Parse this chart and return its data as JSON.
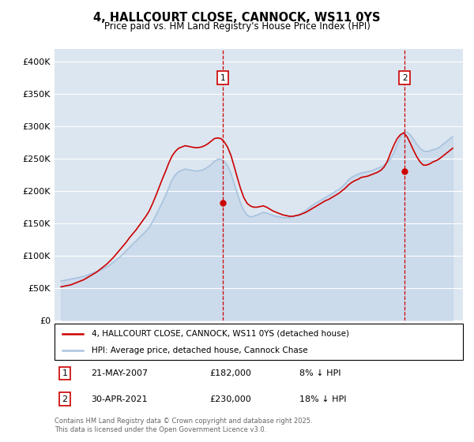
{
  "title": "4, HALLCOURT CLOSE, CANNOCK, WS11 0YS",
  "subtitle": "Price paid vs. HM Land Registry's House Price Index (HPI)",
  "ylim": [
    0,
    420000
  ],
  "yticks": [
    0,
    50000,
    100000,
    150000,
    200000,
    250000,
    300000,
    350000,
    400000
  ],
  "ytick_labels": [
    "£0",
    "£50K",
    "£100K",
    "£150K",
    "£200K",
    "£250K",
    "£300K",
    "£350K",
    "£400K"
  ],
  "xlim": [
    1994.5,
    2025.8
  ],
  "plot_bg_color": "#dce6f0",
  "grid_color": "#ffffff",
  "hpi_color": "#aac4e0",
  "price_color": "#cc0000",
  "ann1_x": 2007.38,
  "ann1_y": 182000,
  "ann2_x": 2021.33,
  "ann2_y": 230000,
  "legend_line1": "4, HALLCOURT CLOSE, CANNOCK, WS11 0YS (detached house)",
  "legend_line2": "HPI: Average price, detached house, Cannock Chase",
  "ann1_date": "21-MAY-2007",
  "ann1_price": "£182,000",
  "ann1_note": "8% ↓ HPI",
  "ann2_date": "30-APR-2021",
  "ann2_price": "£230,000",
  "ann2_note": "18% ↓ HPI",
  "footnote": "Contains HM Land Registry data © Crown copyright and database right 2025.\nThis data is licensed under the Open Government Licence v3.0.",
  "hpi_years": [
    1995,
    1995.25,
    1995.5,
    1995.75,
    1996,
    1996.25,
    1996.5,
    1996.75,
    1997,
    1997.25,
    1997.5,
    1997.75,
    1998,
    1998.25,
    1998.5,
    1998.75,
    1999,
    1999.25,
    1999.5,
    1999.75,
    2000,
    2000.25,
    2000.5,
    2000.75,
    2001,
    2001.25,
    2001.5,
    2001.75,
    2002,
    2002.25,
    2002.5,
    2002.75,
    2003,
    2003.25,
    2003.5,
    2003.75,
    2004,
    2004.25,
    2004.5,
    2004.75,
    2005,
    2005.25,
    2005.5,
    2005.75,
    2006,
    2006.25,
    2006.5,
    2006.75,
    2007,
    2007.25,
    2007.5,
    2007.75,
    2008,
    2008.25,
    2008.5,
    2008.75,
    2009,
    2009.25,
    2009.5,
    2009.75,
    2010,
    2010.25,
    2010.5,
    2010.75,
    2011,
    2011.25,
    2011.5,
    2011.75,
    2012,
    2012.25,
    2012.5,
    2012.75,
    2013,
    2013.25,
    2013.5,
    2013.75,
    2014,
    2014.25,
    2014.5,
    2014.75,
    2015,
    2015.25,
    2015.5,
    2015.75,
    2016,
    2016.25,
    2016.5,
    2016.75,
    2017,
    2017.25,
    2017.5,
    2017.75,
    2018,
    2018.25,
    2018.5,
    2018.75,
    2019,
    2019.25,
    2019.5,
    2019.75,
    2020,
    2020.25,
    2020.5,
    2020.75,
    2021,
    2021.25,
    2021.5,
    2021.75,
    2022,
    2022.25,
    2022.5,
    2022.75,
    2023,
    2023.25,
    2023.5,
    2023.75,
    2024,
    2024.25,
    2024.5,
    2024.75,
    2025
  ],
  "hpi_values": [
    61000,
    62000,
    63000,
    64000,
    65000,
    66000,
    67000,
    68000,
    70000,
    72000,
    74000,
    76000,
    78000,
    80000,
    83000,
    86000,
    90000,
    94000,
    98000,
    103000,
    108000,
    113000,
    118000,
    123000,
    128000,
    133000,
    138000,
    144000,
    152000,
    162000,
    172000,
    182000,
    193000,
    205000,
    217000,
    225000,
    230000,
    232000,
    234000,
    233000,
    232000,
    231000,
    231000,
    232000,
    234000,
    237000,
    241000,
    246000,
    249000,
    249000,
    246000,
    239000,
    228000,
    212000,
    196000,
    181000,
    170000,
    163000,
    160000,
    161000,
    163000,
    165000,
    167000,
    166000,
    164000,
    162000,
    161000,
    160000,
    159000,
    159000,
    159000,
    160000,
    162000,
    164000,
    167000,
    170000,
    174000,
    178000,
    181000,
    184000,
    187000,
    190000,
    193000,
    196000,
    199000,
    202000,
    206000,
    211000,
    217000,
    221000,
    224000,
    226000,
    228000,
    229000,
    230000,
    231000,
    233000,
    235000,
    237000,
    240000,
    244000,
    250000,
    260000,
    272000,
    283000,
    290000,
    291000,
    287000,
    280000,
    272000,
    266000,
    262000,
    261000,
    262000,
    264000,
    265000,
    268000,
    272000,
    276000,
    280000,
    284000
  ],
  "price_years": [
    1995,
    1995.25,
    1995.5,
    1995.75,
    1996,
    1996.25,
    1996.5,
    1996.75,
    1997,
    1997.25,
    1997.5,
    1997.75,
    1998,
    1998.25,
    1998.5,
    1998.75,
    1999,
    1999.25,
    1999.5,
    1999.75,
    2000,
    2000.25,
    2000.5,
    2000.75,
    2001,
    2001.25,
    2001.5,
    2001.75,
    2002,
    2002.25,
    2002.5,
    2002.75,
    2003,
    2003.25,
    2003.5,
    2003.75,
    2004,
    2004.25,
    2004.5,
    2004.75,
    2005,
    2005.25,
    2005.5,
    2005.75,
    2006,
    2006.25,
    2006.5,
    2006.75,
    2007,
    2007.25,
    2007.5,
    2007.75,
    2008,
    2008.25,
    2008.5,
    2008.75,
    2009,
    2009.25,
    2009.5,
    2009.75,
    2010,
    2010.25,
    2010.5,
    2010.75,
    2011,
    2011.25,
    2011.5,
    2011.75,
    2012,
    2012.25,
    2012.5,
    2012.75,
    2013,
    2013.25,
    2013.5,
    2013.75,
    2014,
    2014.25,
    2014.5,
    2014.75,
    2015,
    2015.25,
    2015.5,
    2015.75,
    2016,
    2016.25,
    2016.5,
    2016.75,
    2017,
    2017.25,
    2017.5,
    2017.75,
    2018,
    2018.25,
    2018.5,
    2018.75,
    2019,
    2019.25,
    2019.5,
    2019.75,
    2020,
    2020.25,
    2020.5,
    2020.75,
    2021,
    2021.25,
    2021.5,
    2021.75,
    2022,
    2022.25,
    2022.5,
    2022.75,
    2023,
    2023.25,
    2023.5,
    2023.75,
    2024,
    2024.25,
    2024.5,
    2024.75,
    2025
  ],
  "price_values": [
    52000,
    53000,
    54000,
    55000,
    57000,
    59000,
    61000,
    63000,
    66000,
    69000,
    72000,
    75000,
    79000,
    83000,
    87000,
    92000,
    97000,
    103000,
    109000,
    115000,
    121000,
    128000,
    134000,
    140000,
    147000,
    154000,
    161000,
    169000,
    180000,
    192000,
    205000,
    218000,
    230000,
    243000,
    254000,
    261000,
    266000,
    268000,
    270000,
    269000,
    268000,
    267000,
    267000,
    268000,
    270000,
    273000,
    277000,
    281000,
    282000,
    281000,
    276000,
    268000,
    256000,
    239000,
    221000,
    204000,
    190000,
    181000,
    177000,
    175000,
    175000,
    176000,
    177000,
    175000,
    172000,
    169000,
    167000,
    165000,
    163000,
    162000,
    161000,
    161000,
    162000,
    163000,
    165000,
    167000,
    170000,
    173000,
    176000,
    179000,
    182000,
    185000,
    187000,
    190000,
    193000,
    196000,
    200000,
    204000,
    209000,
    213000,
    216000,
    218000,
    221000,
    222000,
    223000,
    225000,
    227000,
    229000,
    232000,
    237000,
    246000,
    259000,
    271000,
    281000,
    287000,
    290000,
    284000,
    274000,
    263000,
    253000,
    245000,
    240000,
    240000,
    242000,
    245000,
    247000,
    250000,
    254000,
    258000,
    262000,
    266000
  ]
}
